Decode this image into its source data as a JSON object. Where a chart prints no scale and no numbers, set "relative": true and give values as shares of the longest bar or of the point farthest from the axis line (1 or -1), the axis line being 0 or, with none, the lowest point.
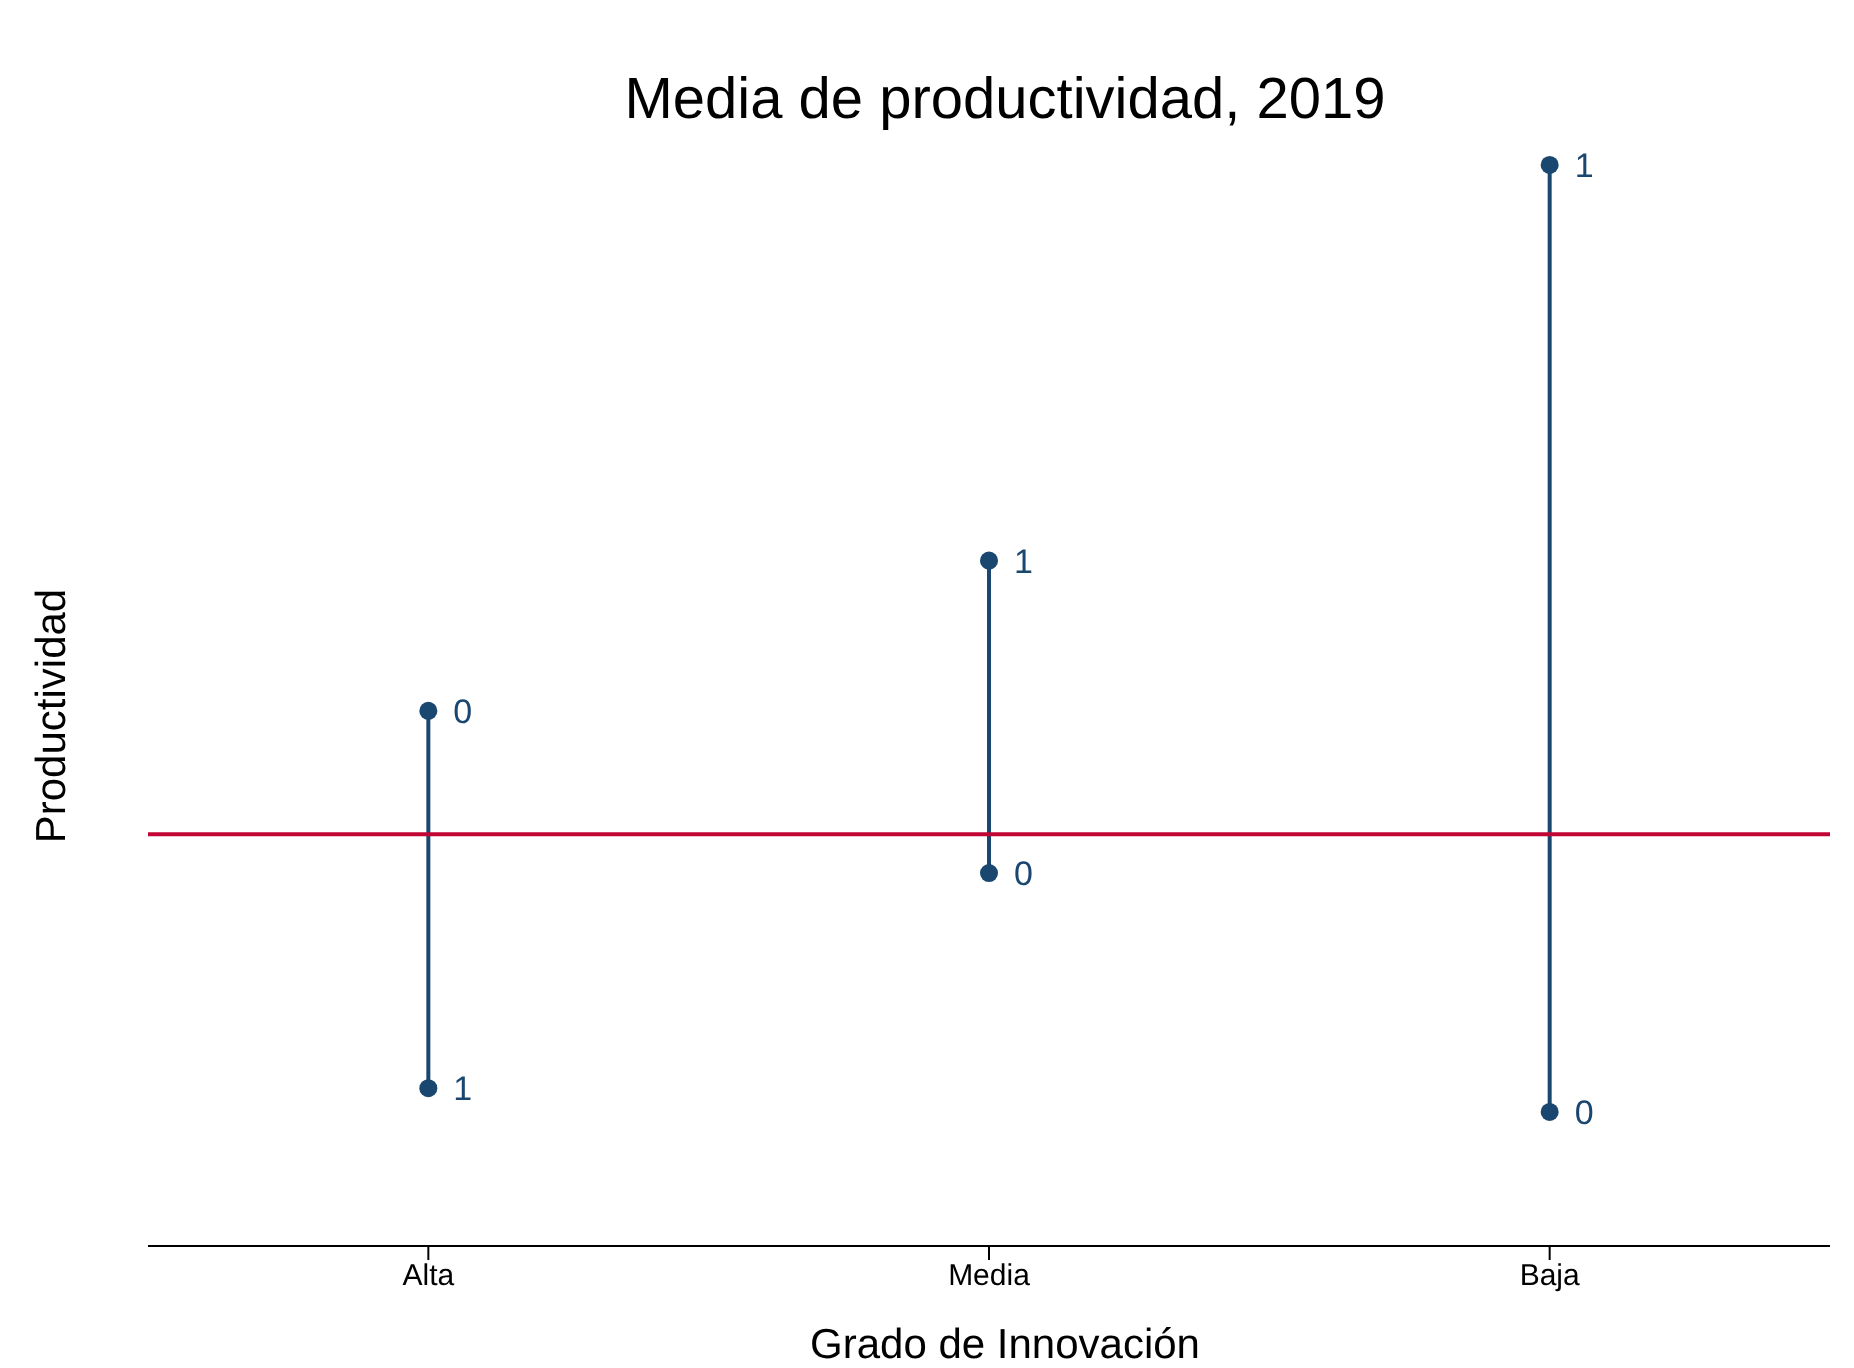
{
  "chart_data": {
    "type": "scatter",
    "title": "Media de productividad, 2019",
    "xlabel": "Grado de Innovación",
    "ylabel": "Productividad",
    "categories": [
      "Alta",
      "Media",
      "Baja"
    ],
    "relative": true,
    "series": [
      {
        "name": "0",
        "color": "#1a476f",
        "values": [
          0.495,
          0.345,
          0.124
        ]
      },
      {
        "name": "1",
        "color": "#1a476f",
        "values": [
          0.146,
          0.634,
          1
        ]
      }
    ],
    "ref_lines": [
      {
        "axis": "y",
        "value": 0.381,
        "color": "#c10534"
      }
    ],
    "marker": "circle",
    "grid": false,
    "legend": false
  }
}
